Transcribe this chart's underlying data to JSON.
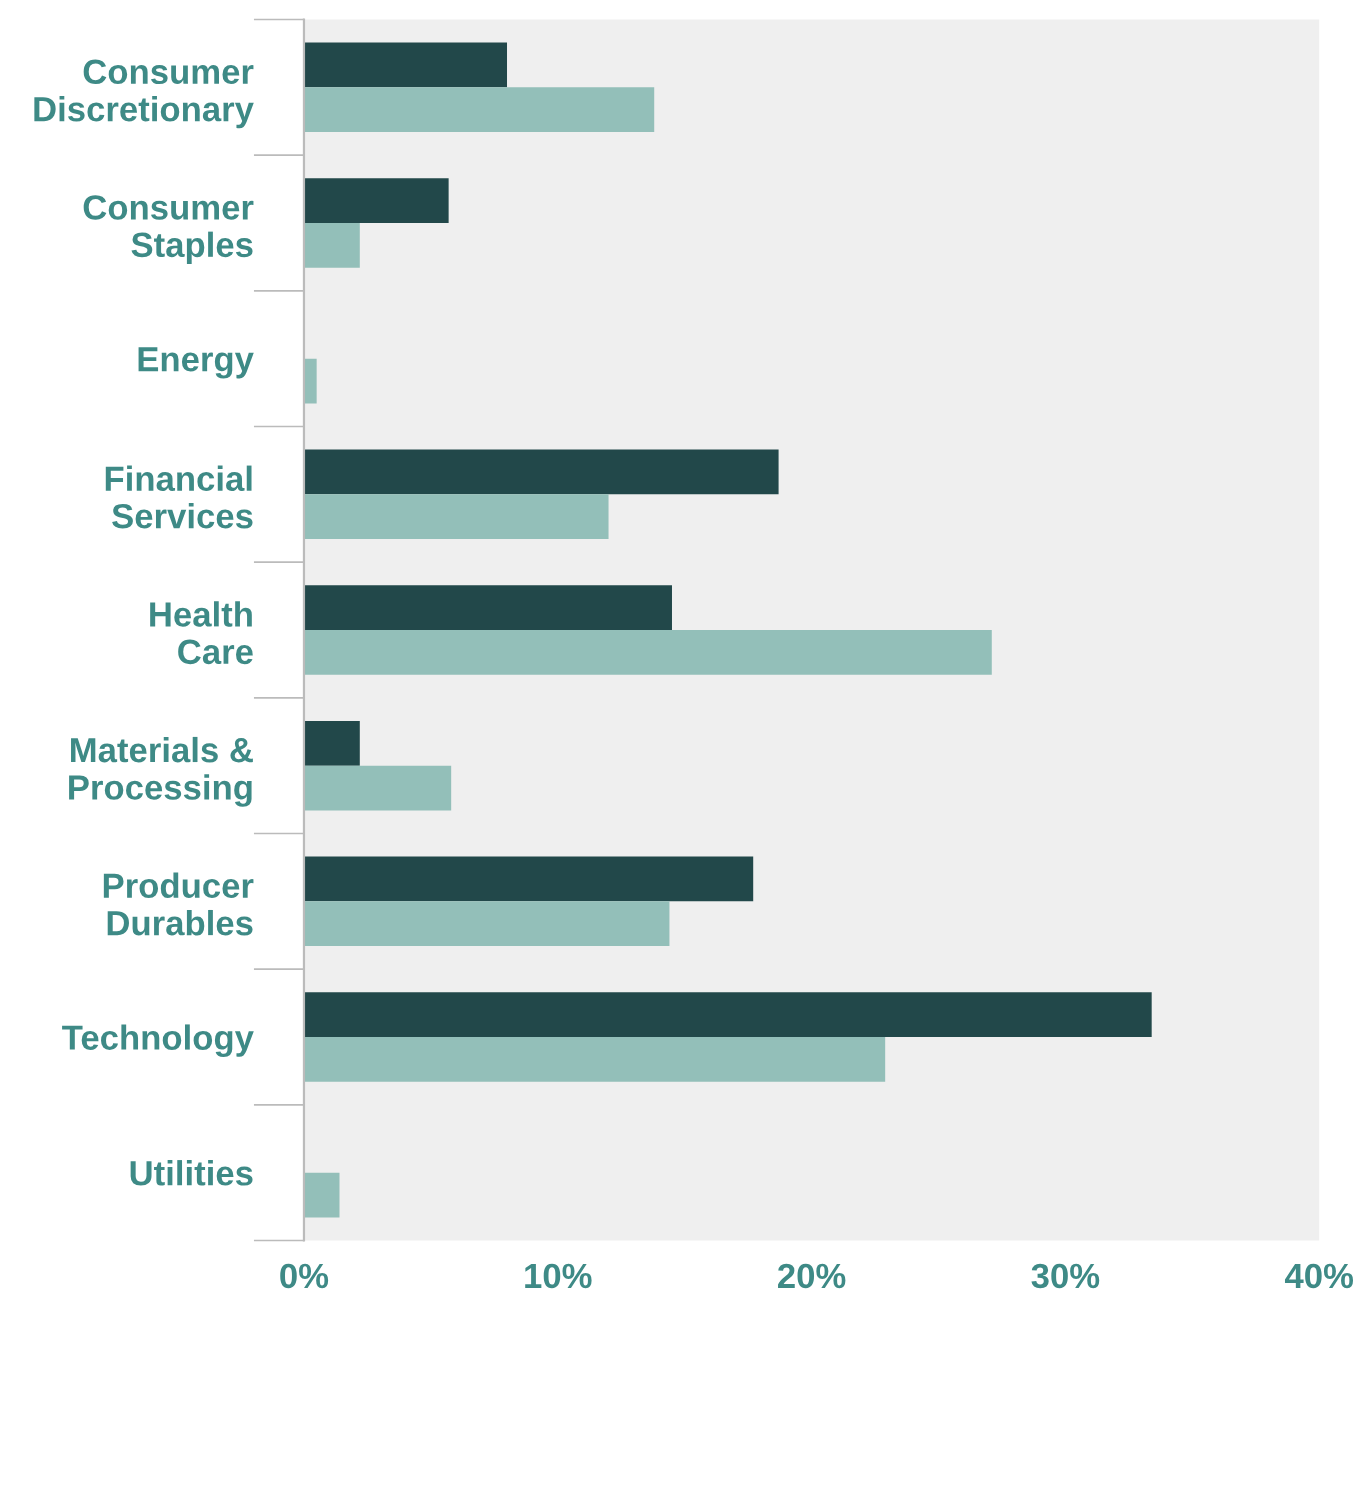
{
  "chart_data": {
    "type": "bar",
    "orientation": "horizontal",
    "categories": [
      "Consumer\nDiscretionary",
      "Consumer\nStaples",
      "Energy",
      "Financial\nServices",
      "Health\nCare",
      "Materials &\nProcessing",
      "Producer\nDurables",
      "Technology",
      "Utilities"
    ],
    "series": [
      {
        "color": "#22484a",
        "values": [
          8.0,
          5.7,
          null,
          18.7,
          14.5,
          2.2,
          17.7,
          33.4,
          null
        ]
      },
      {
        "color": "#93bfb9",
        "values": [
          13.8,
          2.2,
          0.5,
          12.0,
          27.1,
          5.8,
          14.4,
          22.9,
          1.4
        ]
      }
    ],
    "xlim": [
      0,
      40
    ],
    "xticks": [
      {
        "value": 0,
        "label": "0%"
      },
      {
        "value": 10,
        "label": "10%"
      },
      {
        "value": 20,
        "label": "20%"
      },
      {
        "value": 30,
        "label": "30%"
      },
      {
        "value": 40,
        "label": "40%"
      }
    ],
    "grid": false
  }
}
